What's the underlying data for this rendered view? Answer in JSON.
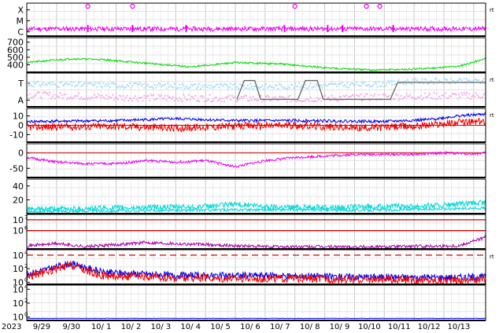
{
  "colors": {
    "background": "#ffffff",
    "frame": "#000000",
    "grid": "#c8c8c8",
    "magenta": "#ee00ee",
    "green": "#00dd00",
    "lightblue": "#a8e0f8",
    "pink": "#f4b0e8",
    "gray": "#666666",
    "blue": "#0000ee",
    "red": "#ee0000",
    "cyan": "#00d8d8",
    "purple": "#aa00aa",
    "darkred": "#cc0000"
  },
  "chart_data": {
    "type": "line",
    "x_labels": {
      "year": "2023",
      "days": [
        "9/29",
        "9/30",
        "10/ 1",
        "10/ 2",
        "10/ 3",
        "10/ 4",
        "10/ 5",
        "10/ 6",
        "10/ 7",
        "10/ 8",
        "10/ 9",
        "10/10",
        "10/11",
        "10/12",
        "10/13"
      ]
    },
    "unit_mark": "rt",
    "panels": [
      {
        "id": "flare-class",
        "tick_labels": [
          "X",
          "M",
          "C"
        ],
        "series": [
          {
            "color": "#ee00ee",
            "baseline": 0.22,
            "spread": 0.07,
            "seed": 11
          }
        ],
        "spikes": {
          "color": "#ee00ee",
          "days": [
            2.05,
            3.55,
            5.35,
            8.65,
            10.1,
            10.6,
            12.3
          ],
          "height": 0.22
        },
        "markers": {
          "color": "#ee00ee",
          "x": [
            2.05,
            3.55,
            9.0,
            11.4,
            11.85
          ]
        }
      },
      {
        "id": "speed",
        "tick_labels": [
          "700",
          "600",
          "500",
          "400"
        ],
        "tick_values": [
          700,
          600,
          500,
          400
        ],
        "ylim": [
          300,
          760
        ],
        "series": [
          {
            "color": "#00dd00",
            "anchors": [
              [
                0,
                430
              ],
              [
                1.5,
                480
              ],
              [
                2.5,
                470
              ],
              [
                4,
                420
              ],
              [
                5.5,
                370
              ],
              [
                7,
                430
              ],
              [
                8.5,
                410
              ],
              [
                10,
                360
              ],
              [
                11.5,
                330
              ],
              [
                13,
                340
              ],
              [
                14.5,
                380
              ],
              [
                15.4,
                480
              ]
            ],
            "noise": 12,
            "seed": 21
          }
        ]
      },
      {
        "id": "ta",
        "tick_labels": [
          "T",
          "A"
        ],
        "series": [
          {
            "color": "#a8e0f8",
            "kind": "dots",
            "anchors": [
              [
                0,
                0.7
              ],
              [
                4,
                0.65
              ],
              [
                8,
                0.62
              ],
              [
                12,
                0.7
              ],
              [
                13,
                0.78
              ],
              [
                15.4,
                0.78
              ]
            ],
            "noise": 0.08,
            "seed": 31
          },
          {
            "color": "#f4b0e8",
            "kind": "dots",
            "anchors": [
              [
                0,
                0.38
              ],
              [
                3,
                0.3
              ],
              [
                6,
                0.28
              ],
              [
                9,
                0.25
              ],
              [
                12,
                0.32
              ],
              [
                15.4,
                0.36
              ]
            ],
            "noise": 0.1,
            "seed": 32
          }
        ],
        "steps": {
          "color": "#666666",
          "points": [
            [
              7.05,
              0.22
            ],
            [
              7.3,
              0.78
            ],
            [
              7.65,
              0.78
            ],
            [
              7.85,
              0.22
            ],
            [
              9.1,
              0.22
            ],
            [
              9.35,
              0.78
            ],
            [
              9.75,
              0.78
            ],
            [
              9.95,
              0.22
            ],
            [
              12.2,
              0.22
            ],
            [
              12.45,
              0.72
            ],
            [
              15.4,
              0.72
            ]
          ]
        }
      },
      {
        "id": "bz",
        "tick_labels": [
          "10",
          "0",
          "-10"
        ],
        "tick_values": [
          10,
          0,
          -10
        ],
        "ylim": [
          -18,
          18
        ],
        "zero_line": "#cc0000",
        "series": [
          {
            "color": "#0000ee",
            "anchors": [
              [
                0,
                4
              ],
              [
                3,
                5
              ],
              [
                5,
                7
              ],
              [
                7,
                5
              ],
              [
                9,
                5
              ],
              [
                12,
                4
              ],
              [
                13.5,
                6
              ],
              [
                14.5,
                10
              ],
              [
                15.4,
                12
              ]
            ],
            "noise": 1.5,
            "seed": 41
          },
          {
            "color": "#ee0000",
            "anchors": [
              [
                0,
                -2
              ],
              [
                3,
                -1
              ],
              [
                5,
                -3
              ],
              [
                7,
                -1
              ],
              [
                9,
                0
              ],
              [
                11,
                -3
              ],
              [
                13,
                -1
              ],
              [
                14.5,
                3
              ],
              [
                15.4,
                4
              ]
            ],
            "noise": 4,
            "seed": 42
          }
        ]
      },
      {
        "id": "index",
        "tick_labels": [
          "0",
          "-50"
        ],
        "tick_values": [
          0,
          -50
        ],
        "ylim": [
          -80,
          30
        ],
        "zero_line": "#cc0000",
        "series": [
          {
            "color": "#ee00ee",
            "anchors": [
              [
                0,
                -15
              ],
              [
                1,
                -30
              ],
              [
                2,
                -35
              ],
              [
                3,
                -35
              ],
              [
                4,
                -25
              ],
              [
                5,
                -30
              ],
              [
                6,
                -25
              ],
              [
                7,
                -45
              ],
              [
                8,
                -25
              ],
              [
                9,
                -15
              ],
              [
                10,
                -10
              ],
              [
                11,
                -5
              ],
              [
                12,
                -5
              ],
              [
                13,
                -5
              ],
              [
                14,
                0
              ],
              [
                15,
                -3
              ],
              [
                15.4,
                0
              ]
            ],
            "noise": 4,
            "seed": 51
          }
        ]
      },
      {
        "id": "density",
        "tick_labels": [
          "40",
          "20"
        ],
        "tick_values": [
          40,
          20
        ],
        "ylim": [
          0,
          50
        ],
        "series": [
          {
            "color": "#00d8d8",
            "anchors": [
              [
                0,
                6
              ],
              [
                3,
                8
              ],
              [
                6,
                10
              ],
              [
                7,
                14
              ],
              [
                8,
                10
              ],
              [
                10,
                9
              ],
              [
                12,
                10
              ],
              [
                14,
                12
              ],
              [
                15.4,
                16
              ]
            ],
            "noise": 4,
            "seed": 61
          },
          {
            "color": "#00d8d8",
            "anchors": [
              [
                0,
                3
              ],
              [
                3,
                4
              ],
              [
                6,
                5
              ],
              [
                8,
                6
              ],
              [
                10,
                5
              ],
              [
                12,
                5
              ],
              [
                14,
                7
              ],
              [
                15.4,
                8
              ]
            ],
            "noise": 2,
            "seed": 62
          }
        ]
      },
      {
        "id": "electron",
        "tick_labels": [
          "10",
          "10"
        ],
        "tick_exponents": [
          "7",
          "6"
        ],
        "tick_values": [
          7,
          6
        ],
        "ylim": [
          4.3,
          7.5
        ],
        "threshold_lines": {
          "color": "#cc0000",
          "values": [
            7,
            6
          ]
        },
        "series": [
          {
            "color": "#aa00aa",
            "anchors": [
              [
                0,
                4.6
              ],
              [
                1,
                4.8
              ],
              [
                2,
                4.5
              ],
              [
                4,
                4.9
              ],
              [
                6,
                4.7
              ],
              [
                8,
                4.5
              ],
              [
                10,
                4.5
              ],
              [
                12,
                4.5
              ],
              [
                14.5,
                4.6
              ],
              [
                15.4,
                5.4
              ]
            ],
            "noise": 0.15,
            "seed": 71
          }
        ]
      },
      {
        "id": "proton",
        "tick_labels": [
          "10",
          "10",
          "10"
        ],
        "tick_exponents": [
          "4",
          "2",
          "0"
        ],
        "tick_values": [
          4,
          2,
          0
        ],
        "ylim": [
          -0.3,
          4.8
        ],
        "threshold_lines": {
          "color": "#cc0000",
          "values": [
            4
          ],
          "dashed": true
        },
        "series": [
          {
            "color": "#0000ee",
            "anchors": [
              [
                0,
                1.2
              ],
              [
                1.5,
                2.8
              ],
              [
                2.5,
                1.5
              ],
              [
                5,
                1.0
              ],
              [
                8,
                1.0
              ],
              [
                11,
                0.8
              ],
              [
                14,
                0.7
              ],
              [
                15.4,
                0.8
              ]
            ],
            "noise": 0.5,
            "seed": 81
          },
          {
            "color": "#ee0000",
            "anchors": [
              [
                0,
                0.8
              ],
              [
                1.5,
                2.5
              ],
              [
                2.5,
                1.0
              ],
              [
                5,
                0.6
              ],
              [
                8,
                0.6
              ],
              [
                11,
                0.4
              ],
              [
                14,
                0.3
              ],
              [
                15.4,
                0.4
              ]
            ],
            "noise": 0.6,
            "seed": 82
          }
        ]
      },
      {
        "id": "neutron",
        "tick_labels": [
          "10",
          "10",
          "10"
        ],
        "tick_exponents": [
          "4",
          "2",
          "0"
        ],
        "tick_values": [
          4,
          2,
          0
        ],
        "ylim": [
          -0.5,
          4.6
        ],
        "series": [
          {
            "color": "#0000ee",
            "anchors": [
              [
                0,
                -0.2
              ],
              [
                15.4,
                -0.2
              ]
            ],
            "noise": 0.03,
            "seed": 91
          }
        ]
      }
    ]
  }
}
